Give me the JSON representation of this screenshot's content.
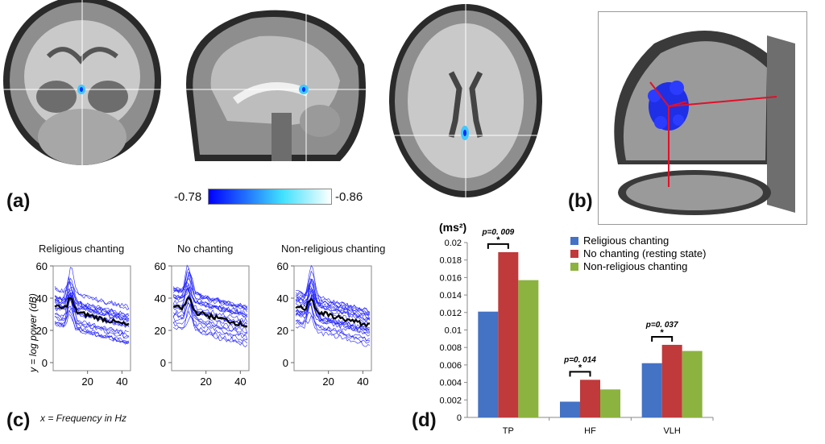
{
  "panels": {
    "a": "(a)",
    "b": "(b)",
    "c": "(c)",
    "d": "(d)"
  },
  "colorbar": {
    "min_label": "-0.78",
    "max_label": "-0.86",
    "colors": [
      "#0000ff",
      "#40e0ff",
      "#ffffff"
    ]
  },
  "eeg": {
    "titles": [
      "Religious chanting",
      "No chanting",
      "Non-religious chanting"
    ],
    "yticks": [
      "60",
      "40",
      "20",
      "0"
    ],
    "xticks": [
      "20",
      "40"
    ],
    "ylabel": "y = log power (dB)",
    "xlabel": "x = Frequency in Hz",
    "line_color": "#1a1aff",
    "mean_color": "#000000"
  },
  "chart_data": {
    "type": "bar",
    "unit_label": "(ms²)",
    "categories": [
      "TP",
      "HF",
      "VLH"
    ],
    "series": [
      {
        "name": "Religious chanting",
        "color": "#4472c4",
        "values": [
          0.0121,
          0.0018,
          0.0062
        ]
      },
      {
        "name": "No chanting (resting state)",
        "color": "#c0393b",
        "values": [
          0.0189,
          0.0043,
          0.0083
        ]
      },
      {
        "name": "Non-religious chanting",
        "color": "#8cb33f",
        "values": [
          0.0157,
          0.0032,
          0.0076
        ]
      }
    ],
    "ylim": [
      0,
      0.02
    ],
    "yticks": [
      "0",
      "0.002",
      "0.004",
      "0.006",
      "0.008",
      "0.01",
      "0.012",
      "0.014",
      "0.016",
      "0.018",
      "0.02"
    ],
    "annotations": [
      {
        "text": "p=0. 009",
        "star": "*",
        "category": 0
      },
      {
        "text": "p=0. 014",
        "star": "*",
        "category": 1
      },
      {
        "text": "p=0. 037",
        "star": "*",
        "category": 2
      }
    ],
    "legend_position": "top-right"
  }
}
